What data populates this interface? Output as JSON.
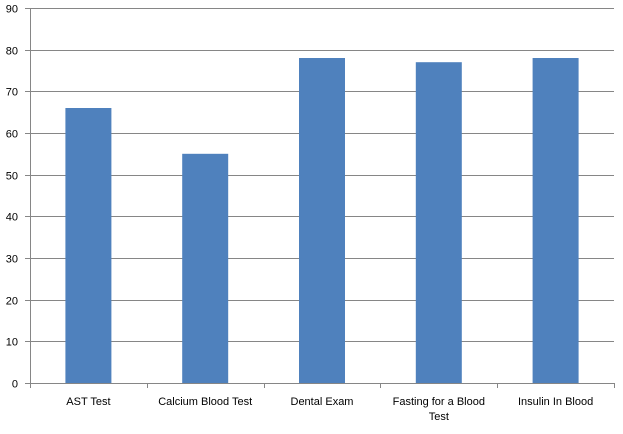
{
  "chart_data": {
    "type": "bar",
    "title": "",
    "xlabel": "",
    "ylabel": "",
    "categories": [
      [
        "AST Test"
      ],
      [
        "Calcium Blood Test"
      ],
      [
        "Dental Exam"
      ],
      [
        "Fasting for a Blood",
        "Test"
      ],
      [
        "Insulin In Blood"
      ]
    ],
    "values": [
      66,
      55,
      78,
      77,
      78
    ],
    "ylim": [
      0,
      90
    ],
    "yticks": [
      0,
      10,
      20,
      30,
      40,
      50,
      60,
      70,
      80,
      90
    ],
    "grid": true,
    "legend": "none",
    "colors": {
      "bar": "#4f81bd",
      "grid": "#868686",
      "axis": "#868686"
    }
  }
}
